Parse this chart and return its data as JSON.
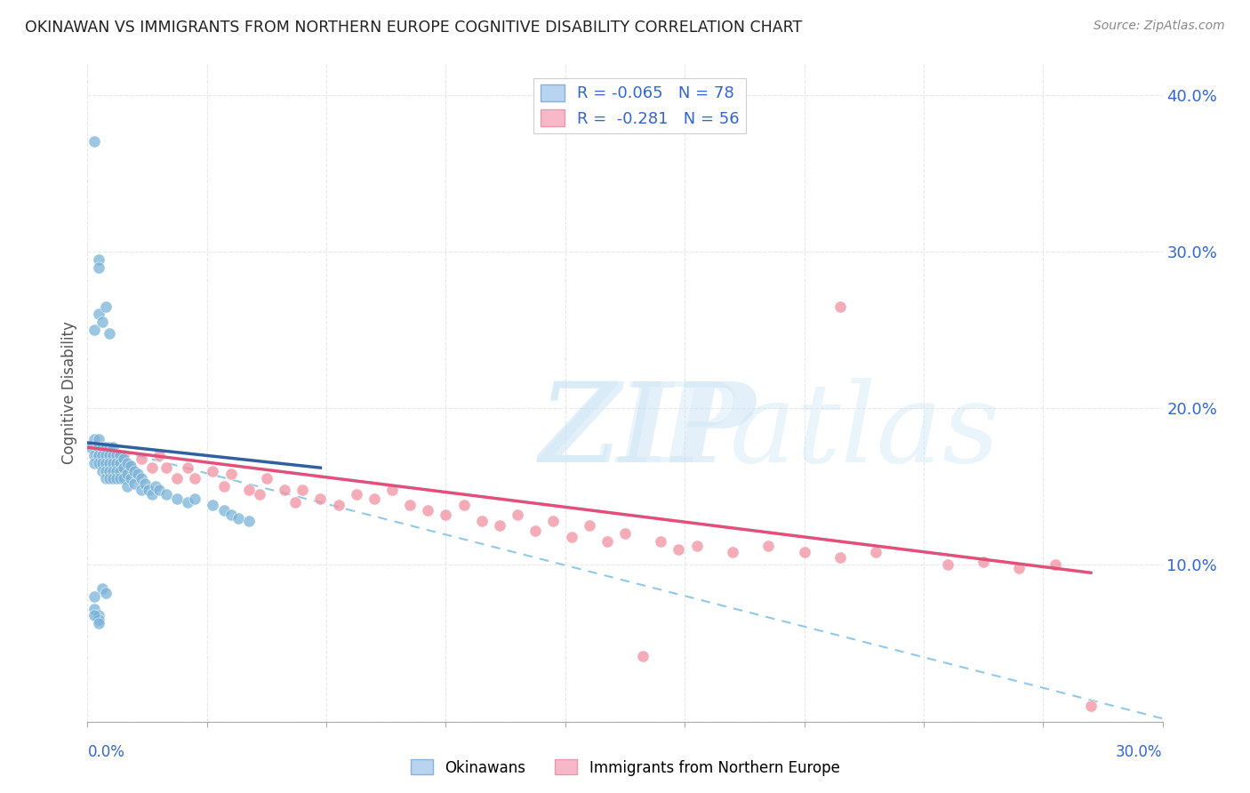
{
  "title": "OKINAWAN VS IMMIGRANTS FROM NORTHERN EUROPE COGNITIVE DISABILITY CORRELATION CHART",
  "source": "Source: ZipAtlas.com",
  "ylabel": "Cognitive Disability",
  "okinawan_color": "#7ab3d9",
  "immigrant_color": "#f090a0",
  "okinawan_trend_color": "#3060a0",
  "immigrant_trend_color": "#e0507a",
  "dashed_line_color": "#90c8e8",
  "background_color": "#ffffff",
  "grid_color": "#e8e8e8",
  "title_color": "#222222",
  "axis_label_color": "#3366cc",
  "R_okinawan": -0.065,
  "N_okinawan": 78,
  "R_immigrant": -0.281,
  "N_immigrant": 56,
  "xmin": 0.0,
  "xmax": 0.3,
  "ymin": 0.0,
  "ymax": 0.42,
  "ok_scatter_x": [
    0.001,
    0.002,
    0.002,
    0.002,
    0.003,
    0.003,
    0.003,
    0.003,
    0.004,
    0.004,
    0.004,
    0.004,
    0.005,
    0.005,
    0.005,
    0.005,
    0.005,
    0.006,
    0.006,
    0.006,
    0.006,
    0.006,
    0.007,
    0.007,
    0.007,
    0.007,
    0.007,
    0.008,
    0.008,
    0.008,
    0.008,
    0.009,
    0.009,
    0.009,
    0.009,
    0.01,
    0.01,
    0.01,
    0.011,
    0.011,
    0.011,
    0.012,
    0.012,
    0.013,
    0.013,
    0.014,
    0.015,
    0.015,
    0.016,
    0.017,
    0.018,
    0.019,
    0.02,
    0.022,
    0.025,
    0.028,
    0.03,
    0.035,
    0.038,
    0.04,
    0.042,
    0.045,
    0.002,
    0.003,
    0.004,
    0.005,
    0.006,
    0.003,
    0.004,
    0.005,
    0.002,
    0.003,
    0.002,
    0.002,
    0.003,
    0.003,
    0.002,
    0.003
  ],
  "ok_scatter_y": [
    0.175,
    0.17,
    0.18,
    0.165,
    0.175,
    0.18,
    0.17,
    0.165,
    0.175,
    0.17,
    0.165,
    0.16,
    0.175,
    0.17,
    0.165,
    0.16,
    0.155,
    0.175,
    0.17,
    0.165,
    0.16,
    0.155,
    0.175,
    0.17,
    0.165,
    0.16,
    0.155,
    0.17,
    0.165,
    0.16,
    0.155,
    0.17,
    0.165,
    0.16,
    0.155,
    0.168,
    0.162,
    0.155,
    0.165,
    0.158,
    0.15,
    0.163,
    0.155,
    0.16,
    0.152,
    0.158,
    0.155,
    0.148,
    0.152,
    0.148,
    0.145,
    0.15,
    0.148,
    0.145,
    0.142,
    0.14,
    0.142,
    0.138,
    0.135,
    0.132,
    0.13,
    0.128,
    0.25,
    0.26,
    0.255,
    0.265,
    0.248,
    0.295,
    0.085,
    0.082,
    0.37,
    0.29,
    0.08,
    0.072,
    0.068,
    0.065,
    0.068,
    0.063
  ],
  "im_scatter_x": [
    0.003,
    0.004,
    0.006,
    0.007,
    0.008,
    0.01,
    0.012,
    0.015,
    0.018,
    0.02,
    0.022,
    0.025,
    0.028,
    0.03,
    0.035,
    0.038,
    0.04,
    0.045,
    0.048,
    0.05,
    0.055,
    0.058,
    0.06,
    0.065,
    0.07,
    0.075,
    0.08,
    0.085,
    0.09,
    0.095,
    0.1,
    0.105,
    0.11,
    0.115,
    0.12,
    0.125,
    0.13,
    0.135,
    0.14,
    0.145,
    0.15,
    0.16,
    0.165,
    0.17,
    0.18,
    0.19,
    0.2,
    0.21,
    0.22,
    0.24,
    0.25,
    0.26,
    0.27,
    0.28,
    0.21,
    0.155
  ],
  "im_scatter_y": [
    0.17,
    0.165,
    0.162,
    0.168,
    0.158,
    0.17,
    0.162,
    0.168,
    0.162,
    0.17,
    0.162,
    0.155,
    0.162,
    0.155,
    0.16,
    0.15,
    0.158,
    0.148,
    0.145,
    0.155,
    0.148,
    0.14,
    0.148,
    0.142,
    0.138,
    0.145,
    0.142,
    0.148,
    0.138,
    0.135,
    0.132,
    0.138,
    0.128,
    0.125,
    0.132,
    0.122,
    0.128,
    0.118,
    0.125,
    0.115,
    0.12,
    0.115,
    0.11,
    0.112,
    0.108,
    0.112,
    0.108,
    0.105,
    0.108,
    0.1,
    0.102,
    0.098,
    0.1,
    0.01,
    0.265,
    0.042
  ],
  "ok_line_x0": 0.0,
  "ok_line_x1": 0.065,
  "ok_line_y0": 0.178,
  "ok_line_y1": 0.162,
  "im_line_x0": 0.0,
  "im_line_x1": 0.28,
  "im_line_y0": 0.175,
  "im_line_y1": 0.095,
  "dash_line_x0": 0.0,
  "dash_line_x1": 0.3,
  "dash_line_y0": 0.178,
  "dash_line_y1": 0.002
}
